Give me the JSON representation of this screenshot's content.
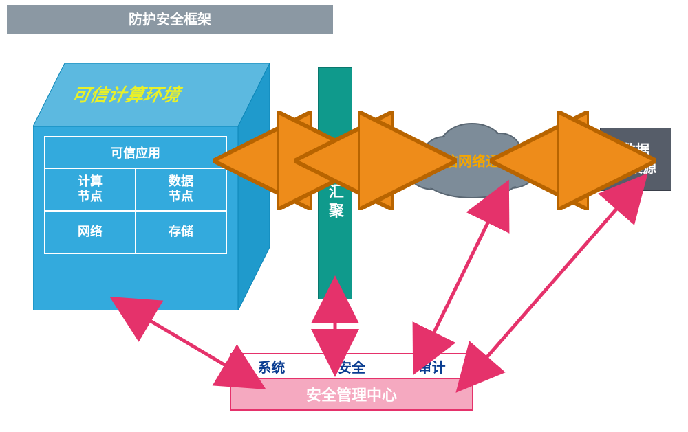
{
  "header": {
    "label": "防护安全框架",
    "bg": "#8b98a3",
    "color": "#ffffff"
  },
  "cube": {
    "title": "可信计算环境",
    "title_color": "#e8f02a",
    "top_fill": "#5cb9e0",
    "right_fill": "#1f9acc",
    "front_fill": "#33aadd",
    "grid": {
      "full": "可信应用",
      "rows": [
        [
          "计算\n节点",
          "数据\n节点"
        ],
        [
          "网络",
          "存储"
        ]
      ]
    }
  },
  "agg": {
    "label": "数据汇聚",
    "bg": "#0f9a8c"
  },
  "cloud": {
    "label": "可信网络通信",
    "label_color": "#f5a500",
    "fill": "#7d8c99",
    "stroke": "#5a6773"
  },
  "src": {
    "label": "数据\n采集源",
    "bg": "#565d69"
  },
  "mgmt": {
    "items": [
      "系统",
      "安全",
      "审计"
    ],
    "items_color": "#0a3d91",
    "title": "安全管理中心",
    "title_color": "#ffffff",
    "title_bg": "#f5a9c0",
    "border": "#e5326b"
  },
  "arrows": {
    "orange_fill": "#ee8c1a",
    "orange_stroke": "#b86400",
    "pink_fill": "#e5326b",
    "pink_head": "#e5326b"
  }
}
